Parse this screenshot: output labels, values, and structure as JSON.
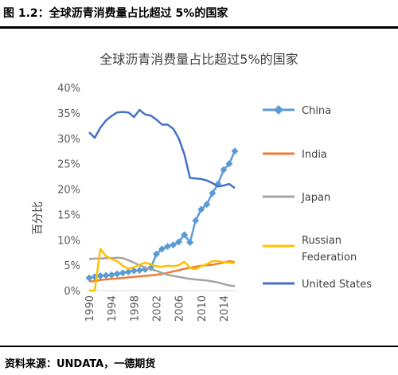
{
  "caption": "图 1.2：全球沥青消费量占比超过 5%的国家",
  "source": "资料来源：UNDATA，一德期货",
  "chart_data": {
    "type": "line",
    "title": "全球沥青消费量占比超过5%的国家",
    "ylabel": "百分比",
    "xlabel": "",
    "x": [
      1990,
      1991,
      1992,
      1993,
      1994,
      1995,
      1996,
      1997,
      1998,
      1999,
      2000,
      2001,
      2002,
      2003,
      2004,
      2005,
      2006,
      2007,
      2008,
      2009,
      2010,
      2011,
      2012,
      2013,
      2014,
      2015,
      2016
    ],
    "x_ticks": [
      1990,
      1994,
      1998,
      2002,
      2006,
      2010,
      2014
    ],
    "x_tick_labels": [
      "1990",
      "1994",
      "1998",
      "2002",
      "2006",
      "2010",
      "2014"
    ],
    "ylim": [
      0,
      0.4
    ],
    "y_ticks": [
      0,
      0.05,
      0.1,
      0.15,
      0.2,
      0.25,
      0.3,
      0.35,
      0.4
    ],
    "y_tick_labels": [
      "0%",
      "5%",
      "10%",
      "15%",
      "20%",
      "25%",
      "30%",
      "35%",
      "40%"
    ],
    "grid": false,
    "legend_position": "right",
    "series": [
      {
        "name": "China",
        "color": "#5b9bd5",
        "marker": "diamond",
        "values": [
          0.025,
          0.027,
          0.029,
          0.03,
          0.031,
          0.033,
          0.035,
          0.037,
          0.039,
          0.04,
          0.042,
          0.045,
          0.072,
          0.082,
          0.087,
          0.09,
          0.096,
          0.11,
          0.095,
          0.138,
          0.16,
          0.17,
          0.192,
          0.21,
          0.238,
          0.25,
          0.275
        ]
      },
      {
        "name": "India",
        "color": "#ed7d31",
        "marker": "none",
        "values": [
          0.018,
          0.019,
          0.021,
          0.022,
          0.023,
          0.024,
          0.025,
          0.026,
          0.027,
          0.028,
          0.029,
          0.03,
          0.031,
          0.033,
          0.035,
          0.038,
          0.04,
          0.043,
          0.045,
          0.047,
          0.049,
          0.05,
          0.051,
          0.053,
          0.055,
          0.058,
          0.056
        ]
      },
      {
        "name": "Japan",
        "color": "#a5a5a5",
        "marker": "none",
        "values": [
          0.062,
          0.063,
          0.063,
          0.064,
          0.064,
          0.065,
          0.064,
          0.06,
          0.055,
          0.05,
          0.045,
          0.042,
          0.039,
          0.035,
          0.031,
          0.029,
          0.027,
          0.025,
          0.023,
          0.022,
          0.021,
          0.02,
          0.018,
          0.016,
          0.013,
          0.01,
          0.009
        ]
      },
      {
        "name": "Russian Federation",
        "color": "#ffc000",
        "marker": "none",
        "values": [
          0.0,
          0.0,
          0.082,
          0.068,
          0.062,
          0.058,
          0.049,
          0.043,
          0.046,
          0.051,
          0.055,
          0.052,
          0.048,
          0.047,
          0.049,
          0.048,
          0.05,
          0.057,
          0.045,
          0.042,
          0.048,
          0.052,
          0.058,
          0.058,
          0.056,
          0.055,
          0.054
        ]
      },
      {
        "name": "United States",
        "color": "#4472c4",
        "marker": "none",
        "values": [
          0.312,
          0.301,
          0.321,
          0.335,
          0.344,
          0.351,
          0.352,
          0.351,
          0.342,
          0.356,
          0.347,
          0.345,
          0.337,
          0.327,
          0.327,
          0.319,
          0.3,
          0.268,
          0.222,
          0.221,
          0.22,
          0.217,
          0.212,
          0.205,
          0.207,
          0.21,
          0.202
        ]
      }
    ],
    "legend_labels": {
      "china": "China",
      "india": "India",
      "japan": "Japan",
      "russia_line1": "Russian",
      "russia_line2": "Federation",
      "usa": "United States"
    }
  }
}
